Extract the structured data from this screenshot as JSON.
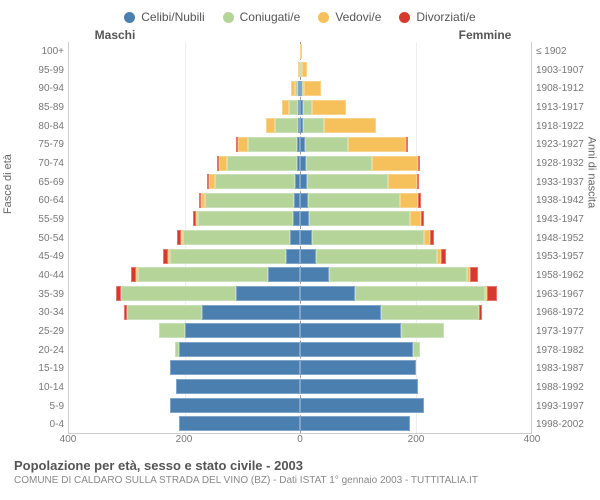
{
  "chart": {
    "type": "population-pyramid",
    "legend": [
      {
        "label": "Celibi/Nubili",
        "color": "#4a7fb0"
      },
      {
        "label": "Coniugati/e",
        "color": "#b4d49a"
      },
      {
        "label": "Vedovi/e",
        "color": "#f6c15a"
      },
      {
        "label": "Divorziati/e",
        "color": "#d63a2e"
      }
    ],
    "gender_left": "Maschi",
    "gender_right": "Femmine",
    "y_left_title": "Fasce di età",
    "y_right_title": "Anni di nascita",
    "x_max": 400,
    "x_ticks": [
      400,
      200,
      0,
      200,
      400
    ],
    "colors": {
      "bg": "#ffffff",
      "grid": "#eeeeee",
      "axis": "#cccccc",
      "text": "#777777"
    },
    "rows": [
      {
        "age": "100+",
        "year": "≤ 1902",
        "m": [
          0,
          0,
          0,
          0
        ],
        "f": [
          0,
          0,
          2,
          0
        ]
      },
      {
        "age": "95-99",
        "year": "1903-1907",
        "m": [
          0,
          0,
          3,
          0
        ],
        "f": [
          0,
          2,
          8,
          0
        ]
      },
      {
        "age": "90-94",
        "year": "1908-1912",
        "m": [
          2,
          5,
          8,
          0
        ],
        "f": [
          3,
          3,
          30,
          0
        ]
      },
      {
        "age": "85-89",
        "year": "1913-1917",
        "m": [
          3,
          15,
          12,
          0
        ],
        "f": [
          5,
          15,
          60,
          0
        ]
      },
      {
        "age": "80-84",
        "year": "1918-1922",
        "m": [
          4,
          40,
          15,
          0
        ],
        "f": [
          6,
          35,
          90,
          0
        ]
      },
      {
        "age": "75-79",
        "year": "1923-1927",
        "m": [
          5,
          85,
          18,
          2
        ],
        "f": [
          8,
          75,
          100,
          2
        ]
      },
      {
        "age": "70-74",
        "year": "1928-1932",
        "m": [
          6,
          120,
          15,
          2
        ],
        "f": [
          10,
          115,
          80,
          3
        ]
      },
      {
        "age": "65-69",
        "year": "1933-1937",
        "m": [
          8,
          140,
          10,
          3
        ],
        "f": [
          12,
          140,
          50,
          4
        ]
      },
      {
        "age": "60-64",
        "year": "1938-1942",
        "m": [
          10,
          155,
          6,
          4
        ],
        "f": [
          14,
          160,
          30,
          5
        ]
      },
      {
        "age": "55-59",
        "year": "1943-1947",
        "m": [
          12,
          165,
          3,
          5
        ],
        "f": [
          16,
          175,
          18,
          6
        ]
      },
      {
        "age": "50-54",
        "year": "1948-1952",
        "m": [
          18,
          185,
          2,
          6
        ],
        "f": [
          20,
          195,
          10,
          7
        ]
      },
      {
        "age": "45-49",
        "year": "1953-1957",
        "m": [
          25,
          200,
          2,
          8
        ],
        "f": [
          28,
          210,
          6,
          9
        ]
      },
      {
        "age": "40-44",
        "year": "1958-1962",
        "m": [
          55,
          225,
          1,
          10
        ],
        "f": [
          50,
          240,
          4,
          14
        ]
      },
      {
        "age": "35-39",
        "year": "1963-1967",
        "m": [
          110,
          200,
          0,
          8
        ],
        "f": [
          95,
          225,
          2,
          18
        ]
      },
      {
        "age": "30-34",
        "year": "1968-1972",
        "m": [
          170,
          130,
          0,
          4
        ],
        "f": [
          140,
          170,
          0,
          6
        ]
      },
      {
        "age": "25-29",
        "year": "1973-1977",
        "m": [
          200,
          45,
          0,
          0
        ],
        "f": [
          175,
          75,
          0,
          0
        ]
      },
      {
        "age": "20-24",
        "year": "1978-1982",
        "m": [
          210,
          6,
          0,
          0
        ],
        "f": [
          195,
          12,
          0,
          0
        ]
      },
      {
        "age": "15-19",
        "year": "1983-1987",
        "m": [
          225,
          0,
          0,
          0
        ],
        "f": [
          200,
          0,
          0,
          0
        ]
      },
      {
        "age": "10-14",
        "year": "1988-1992",
        "m": [
          215,
          0,
          0,
          0
        ],
        "f": [
          205,
          0,
          0,
          0
        ]
      },
      {
        "age": "5-9",
        "year": "1993-1997",
        "m": [
          225,
          0,
          0,
          0
        ],
        "f": [
          215,
          0,
          0,
          0
        ]
      },
      {
        "age": "0-4",
        "year": "1998-2002",
        "m": [
          210,
          0,
          0,
          0
        ],
        "f": [
          190,
          0,
          0,
          0
        ]
      }
    ],
    "title": "Popolazione per età, sesso e stato civile - 2003",
    "subtitle": "COMUNE DI CALDARO SULLA STRADA DEL VINO (BZ) - Dati ISTAT 1° gennaio 2003 - TUTTITALIA.IT"
  }
}
